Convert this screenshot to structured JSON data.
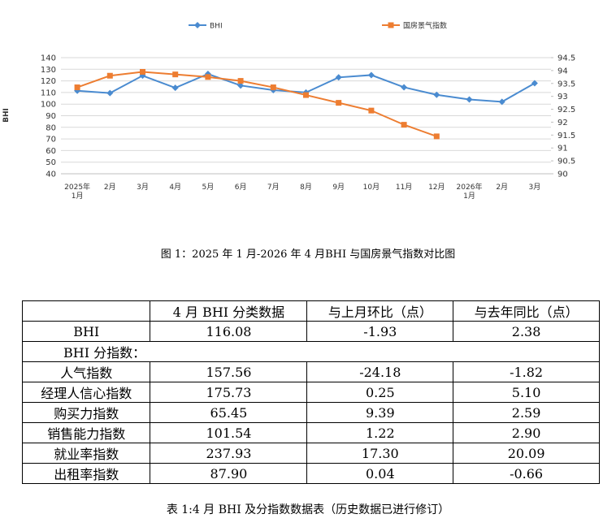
{
  "chart_data": {
    "type": "line",
    "y_label": "BHI",
    "categories": [
      "2025年\n1月",
      "2月",
      "3月",
      "4月",
      "5月",
      "6月",
      "7月",
      "8月",
      "9月",
      "10月",
      "11月",
      "12月",
      "2026年\n1月",
      "2月",
      "3月"
    ],
    "series": [
      {
        "name": "BHI",
        "color": "#4a8bd0",
        "marker": "diamond",
        "values": [
          111.5,
          109.5,
          124.5,
          114,
          126,
          116,
          112,
          110,
          123,
          125,
          114.5,
          108,
          104,
          102,
          118
        ]
      },
      {
        "name": "国房景气指数",
        "color": "#ed7d31",
        "marker": "square",
        "axis": "y2",
        "values": [
          93.35,
          93.8,
          93.95,
          93.85,
          93.75,
          93.6,
          93.35,
          93.05,
          92.75,
          92.45,
          91.9,
          91.45,
          null,
          null,
          null
        ]
      }
    ],
    "ylim": [
      40,
      140
    ],
    "yticks": [
      40,
      50,
      60,
      70,
      80,
      90,
      100,
      110,
      120,
      130,
      140
    ],
    "y2lim": [
      90,
      94.5
    ],
    "y2ticks": [
      90,
      90.5,
      91,
      91.5,
      92,
      92.5,
      93,
      93.5,
      94,
      94.5
    ],
    "grid": true,
    "legend": "top"
  },
  "figure_caption": "图 1：2025 年 1 月-2026 年 4 月BHI 与国房景气指数对比图",
  "table": {
    "header": [
      "",
      "4 月 BHI 分类数据",
      "与上月环比（点）",
      "与去年同比（点）"
    ],
    "rows": [
      [
        "BHI",
        "116.08",
        "-1.93",
        "2.38"
      ],
      [
        "BHI 分指数："
      ],
      [
        "人气指数",
        "157.56",
        "-24.18",
        "-1.82"
      ],
      [
        "经理人信心指数",
        "175.73",
        "0.25",
        "5.10"
      ],
      [
        "购买力指数",
        "65.45",
        "9.39",
        "2.59"
      ],
      [
        "销售能力指数",
        "101.54",
        "1.22",
        "2.90"
      ],
      [
        "就业率指数",
        "237.93",
        "17.30",
        "20.09"
      ],
      [
        "出租率指数",
        "87.90",
        "0.04",
        "-0.66"
      ]
    ],
    "caption": "表 1:4 月 BHI 及分指数数据表（历史数据已进行修订）"
  }
}
